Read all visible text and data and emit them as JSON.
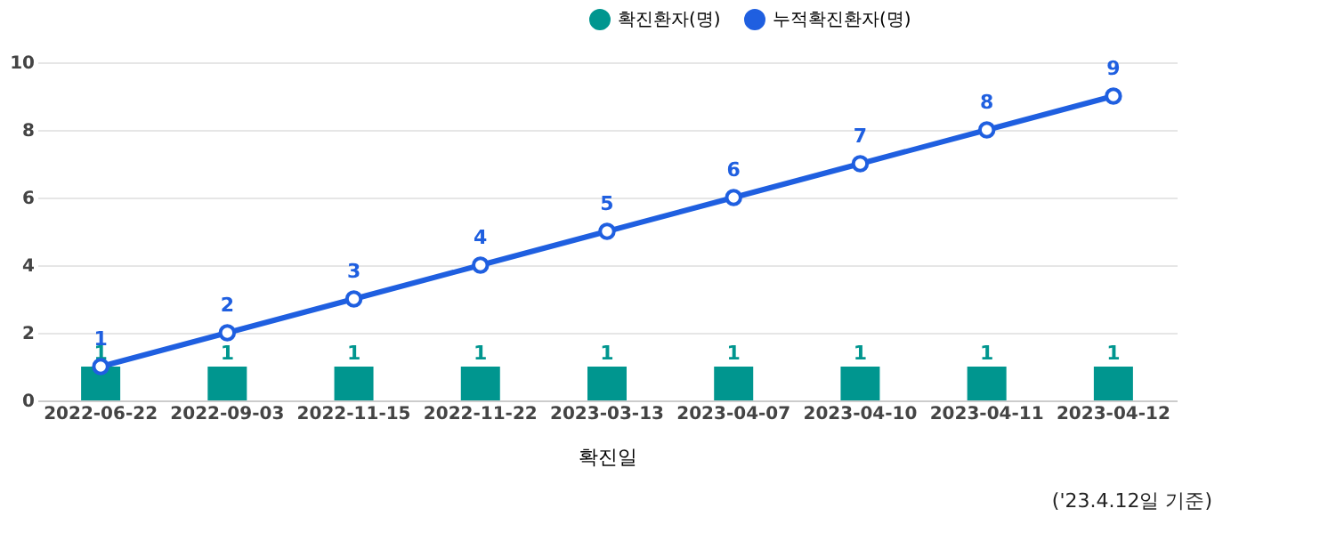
{
  "chart_data": {
    "type": "bar",
    "categories": [
      "2022-06-22",
      "2022-09-03",
      "2022-11-15",
      "2022-11-22",
      "2023-03-13",
      "2023-04-07",
      "2023-04-10",
      "2023-04-11",
      "2023-04-12"
    ],
    "series": [
      {
        "name": "확진환자(명)",
        "color": "#00968f",
        "values": [
          1,
          1,
          1,
          1,
          1,
          1,
          1,
          1,
          1
        ]
      },
      {
        "name": "누적확진환자(명)",
        "type": "line",
        "color": "#1f5fe0",
        "marker": "circle",
        "line_style": "solid",
        "values": [
          1,
          2,
          3,
          4,
          5,
          6,
          7,
          8,
          9
        ]
      }
    ],
    "xlabel": "확진일",
    "ylim": [
      0,
      10
    ],
    "yticks": [
      0,
      2,
      4,
      6,
      8,
      10
    ],
    "grid": "y",
    "legend": "top right",
    "data_labels": true,
    "annotations": [
      "('23.4.12일 기준)"
    ]
  }
}
